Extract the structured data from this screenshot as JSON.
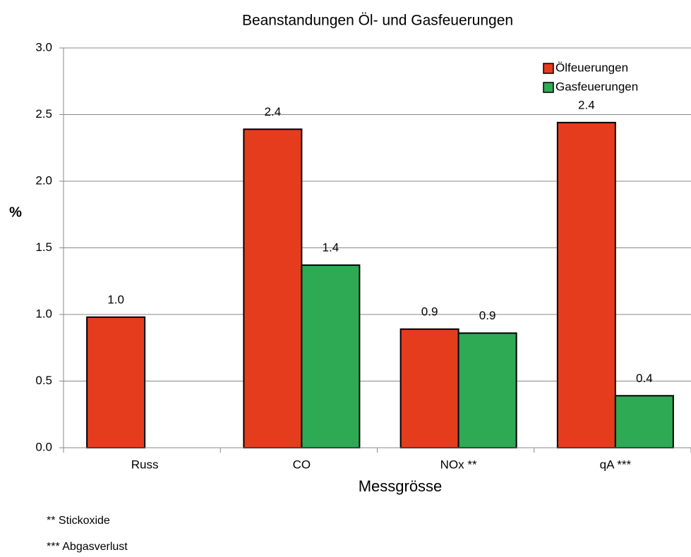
{
  "chart_data": {
    "type": "bar",
    "title": "Beanstandungen Öl- und Gasfeuerungen",
    "y_label": "%",
    "x_label": "Messgrösse",
    "categories": [
      "Russ",
      "CO",
      "NOx  **",
      "qA ***"
    ],
    "series": [
      {
        "name": "Ölfeuerungen",
        "color": "#e63c1e",
        "values": [
          0.98,
          2.39,
          0.89,
          2.44
        ],
        "value_labels": [
          "1.0",
          "2.4",
          "0.9",
          "2.4"
        ]
      },
      {
        "name": "Gasfeuerungen",
        "color": "#2eaa55",
        "values": [
          null,
          1.37,
          0.86,
          0.39
        ],
        "value_labels": [
          null,
          "1.4",
          "0.9",
          "0.4"
        ]
      }
    ],
    "ylim": [
      0,
      3
    ],
    "yticks": [
      {
        "value": 0,
        "label": "0.0"
      },
      0.5,
      {
        "value": 1,
        "label": "1.0"
      },
      1.5,
      {
        "value": 2,
        "label": "2.0"
      },
      2.5,
      {
        "value": 3,
        "label": "3.0"
      }
    ],
    "grid": true,
    "legend": "top-right",
    "notes": [
      "** Stickoxide",
      "*** Abgasverlust"
    ]
  }
}
